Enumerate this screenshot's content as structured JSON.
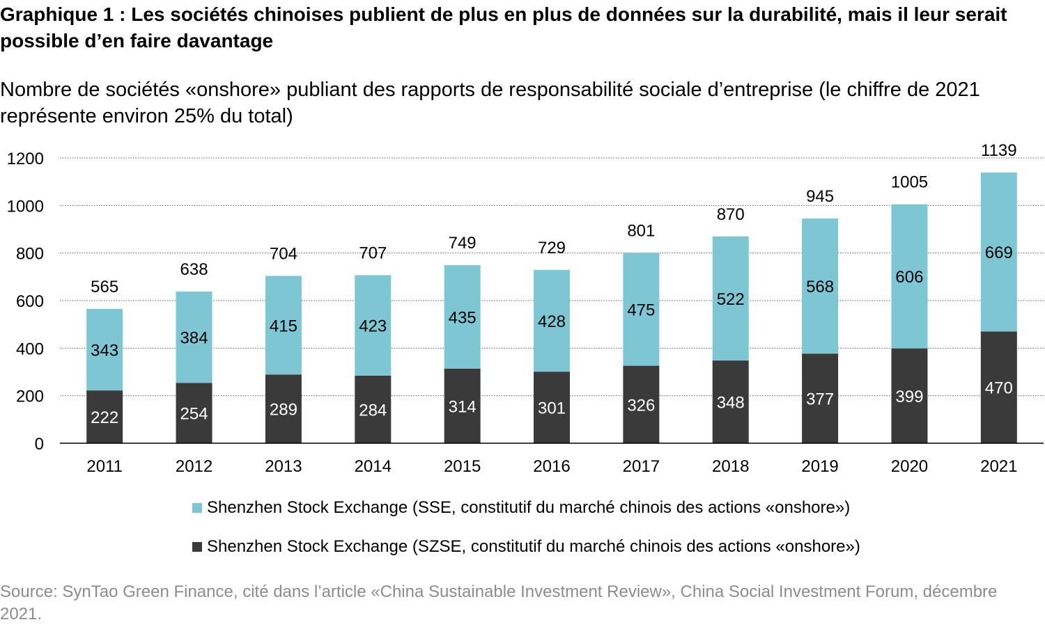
{
  "title": "Graphique 1 : Les sociétés chinoises publient de plus en plus de données sur la durabilité, mais il leur serait possible d’en faire davantage",
  "subtitle": "Nombre de sociétés «onshore» publiant des rapports de responsabilité sociale d’entreprise (le chiffre de 2021 représente environ 25% du total)",
  "source": "Source: SynTao Green Finance, cité dans l’article «China Sustainable Investment Review», China Social Investment Forum, décembre 2021.",
  "chart_data": {
    "type": "bar",
    "stacked": true,
    "categories": [
      "2011",
      "2012",
      "2013",
      "2014",
      "2015",
      "2016",
      "2017",
      "2018",
      "2019",
      "2020",
      "2021"
    ],
    "series": [
      {
        "name": "Shenzhen Stock Exchange (SZSE, constitutif du marché chinois des actions «onshore»)",
        "color": "#3a3a3a",
        "values": [
          222,
          254,
          289,
          284,
          314,
          301,
          326,
          348,
          377,
          399,
          470
        ]
      },
      {
        "name": "Shenzhen Stock Exchange (SSE, constitutif du marché chinois des actions «onshore»)",
        "color": "#7ec6d3",
        "values": [
          343,
          384,
          415,
          423,
          435,
          428,
          475,
          522,
          568,
          606,
          669
        ]
      }
    ],
    "totals": [
      565,
      638,
      704,
      707,
      749,
      729,
      801,
      870,
      945,
      1005,
      1139
    ],
    "legend_order": [
      1,
      0
    ],
    "ylim": [
      0,
      1200
    ],
    "yticks": [
      0,
      200,
      400,
      600,
      800,
      1000,
      1200
    ],
    "grid": true,
    "legend_position": "bottom"
  }
}
